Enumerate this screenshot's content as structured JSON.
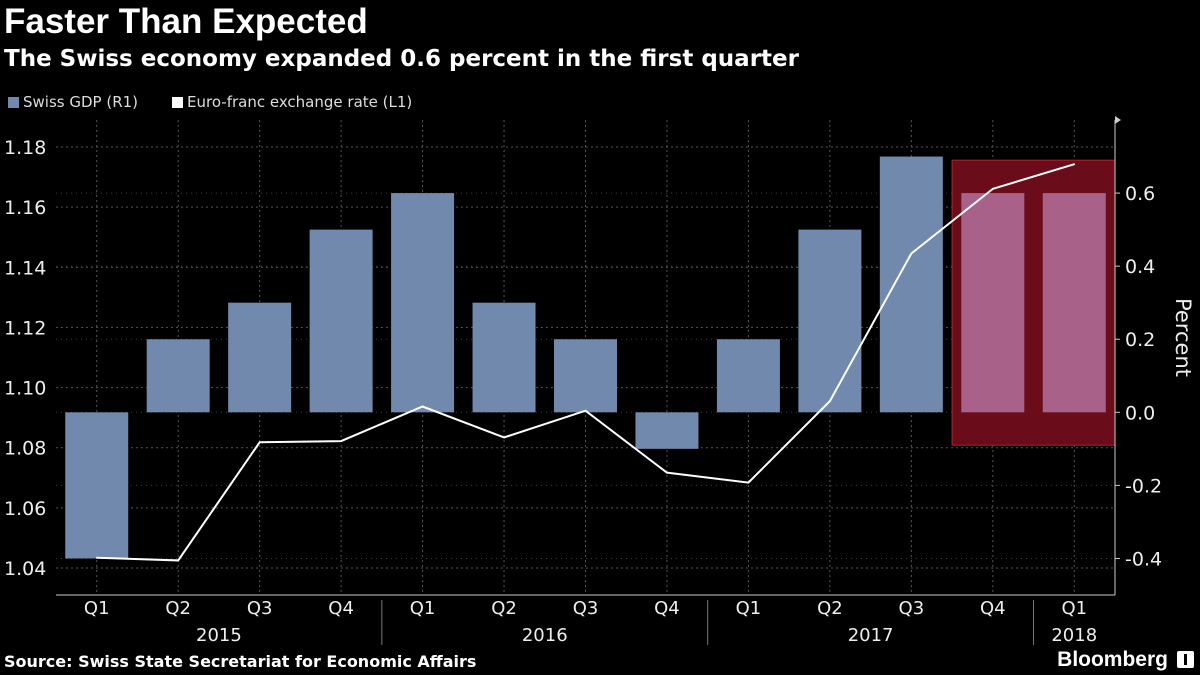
{
  "chart_data": {
    "type": "bar",
    "title": "Faster Than Expected",
    "subtitle": "The Swiss economy expanded 0.6 percent in the first quarter",
    "categories": [
      "Q1",
      "Q2",
      "Q3",
      "Q4",
      "Q1",
      "Q2",
      "Q3",
      "Q4",
      "Q1",
      "Q2",
      "Q3",
      "Q4",
      "Q1"
    ],
    "years": [
      {
        "label": "2015",
        "from": 0,
        "to": 3
      },
      {
        "label": "2016",
        "from": 4,
        "to": 7
      },
      {
        "label": "2017",
        "from": 8,
        "to": 11
      },
      {
        "label": "2018",
        "from": 12,
        "to": 12
      }
    ],
    "series": [
      {
        "name": "Swiss GDP (R1)",
        "type": "bar",
        "axis": "right",
        "color": "#7189ad",
        "values": [
          -0.4,
          0.2,
          0.3,
          0.5,
          0.6,
          0.3,
          0.2,
          -0.1,
          0.2,
          0.5,
          0.7,
          0.6,
          0.6
        ]
      },
      {
        "name": "Euro-franc exchange rate (L1)",
        "type": "line",
        "axis": "left",
        "color": "#ffffff",
        "values": [
          1.0434,
          1.0425,
          1.0818,
          1.0822,
          1.0937,
          1.0834,
          1.0923,
          1.0717,
          1.0684,
          1.0955,
          1.1446,
          1.1661,
          1.1743
        ]
      }
    ],
    "left_axis": {
      "ticks": [
        "1.04",
        "1.06",
        "1.08",
        "1.10",
        "1.12",
        "1.14",
        "1.16",
        "1.18"
      ],
      "ylim": [
        1.031,
        1.189
      ]
    },
    "right_axis": {
      "label": "Percent",
      "ticks": [
        "-0.4",
        "-0.2",
        "0.0",
        "0.2",
        "0.4",
        "0.6"
      ],
      "ylim": [
        -0.5,
        0.8
      ]
    },
    "highlight": {
      "from": 11,
      "to": 12,
      "ymin": -0.09,
      "ymax": 0.69,
      "color": "#6a0c1a"
    },
    "grid": true,
    "legend_position": "top-left"
  },
  "source": "Source: Swiss State Secretariat for Economic Affairs",
  "brand": "Bloomberg"
}
